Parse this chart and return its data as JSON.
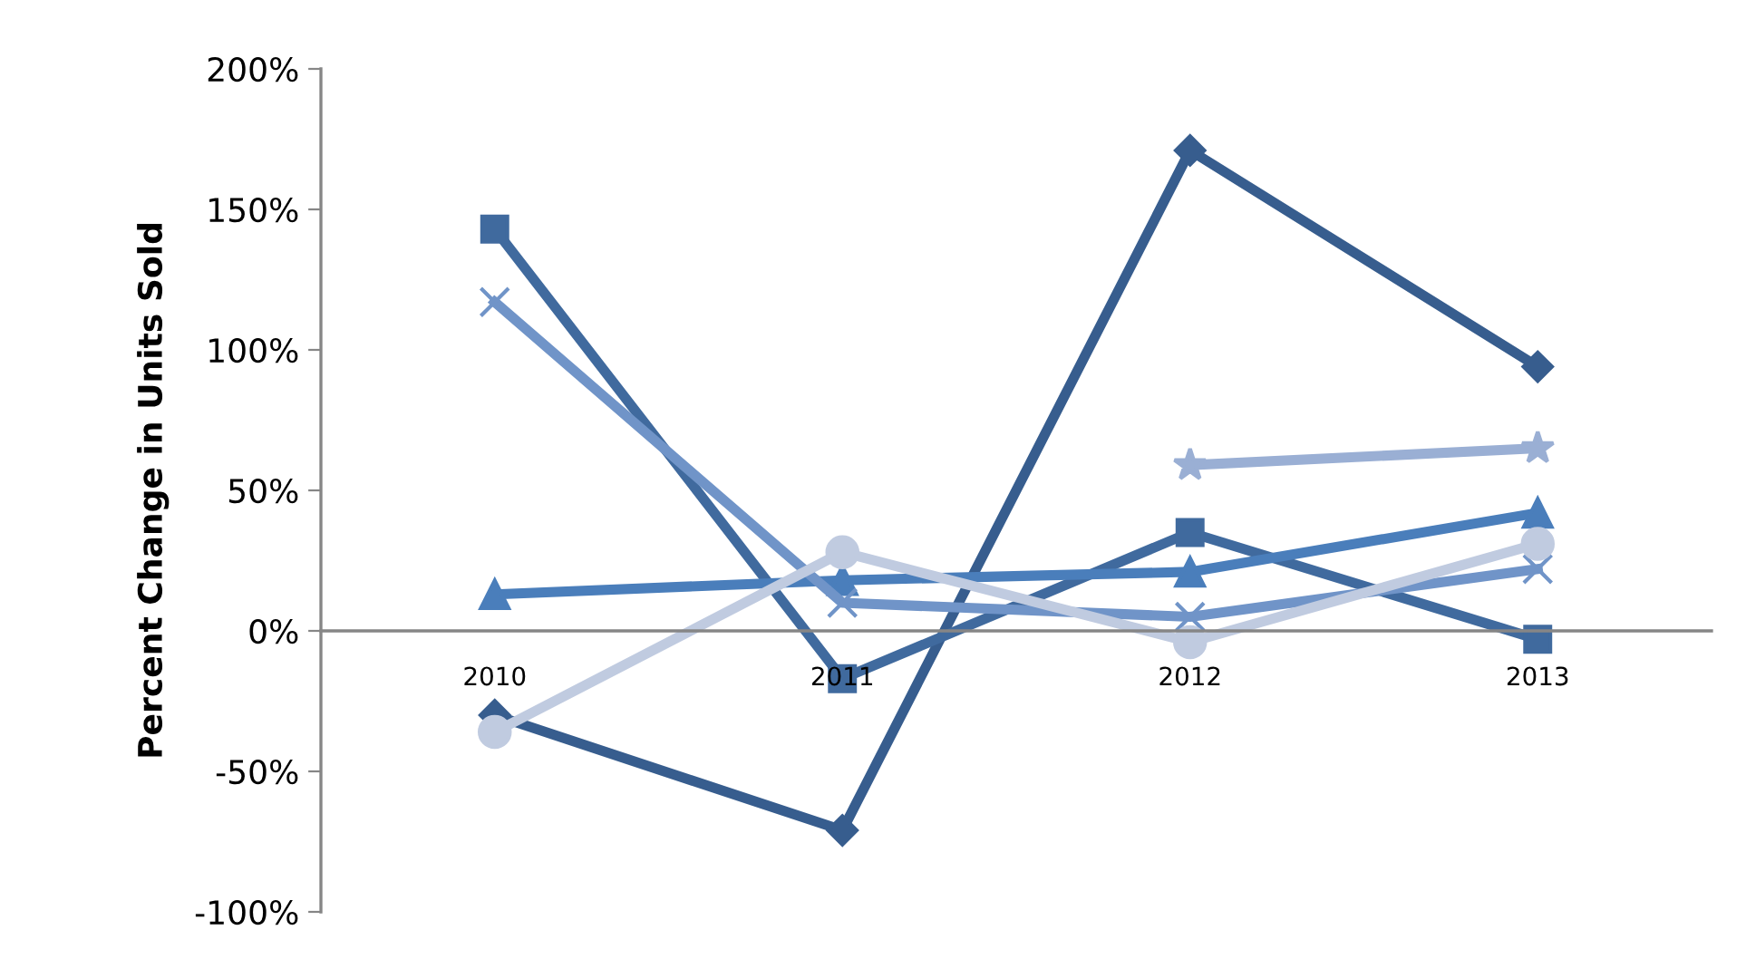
{
  "chart_data": {
    "type": "line",
    "ylabel": "Percent Change in Units Sold",
    "categories": [
      "2010",
      "2011",
      "2012",
      "2013"
    ],
    "series": [
      {
        "color": "#375d8e",
        "marker": "diamond",
        "values": [
          -30,
          -71,
          171,
          94
        ]
      },
      {
        "color": "#406a9e",
        "marker": "square",
        "values": [
          143,
          -17,
          35,
          -3
        ]
      },
      {
        "color": "#4a7ebb",
        "marker": "triangle",
        "values": [
          13,
          18,
          21,
          42
        ]
      },
      {
        "color": "#7094c8",
        "marker": "cross",
        "values": [
          117,
          10,
          5,
          22
        ]
      },
      {
        "color": "#9aafd4",
        "marker": "star",
        "values": [
          null,
          null,
          59,
          65
        ]
      },
      {
        "color": "#c0cbe0",
        "marker": "circle",
        "values": [
          -36,
          28,
          -4,
          31
        ]
      }
    ],
    "ylim": [
      -100,
      200
    ],
    "yticks": [
      {
        "value": -100,
        "label": "-100%"
      },
      {
        "value": -50,
        "label": "-50%"
      },
      {
        "value": 0,
        "label": "0%"
      },
      {
        "value": 50,
        "label": "50%"
      },
      {
        "value": 100,
        "label": "100%"
      },
      {
        "value": 150,
        "label": "150%"
      },
      {
        "value": 200,
        "label": "200%"
      }
    ],
    "grid": false,
    "line_style": "solid"
  }
}
